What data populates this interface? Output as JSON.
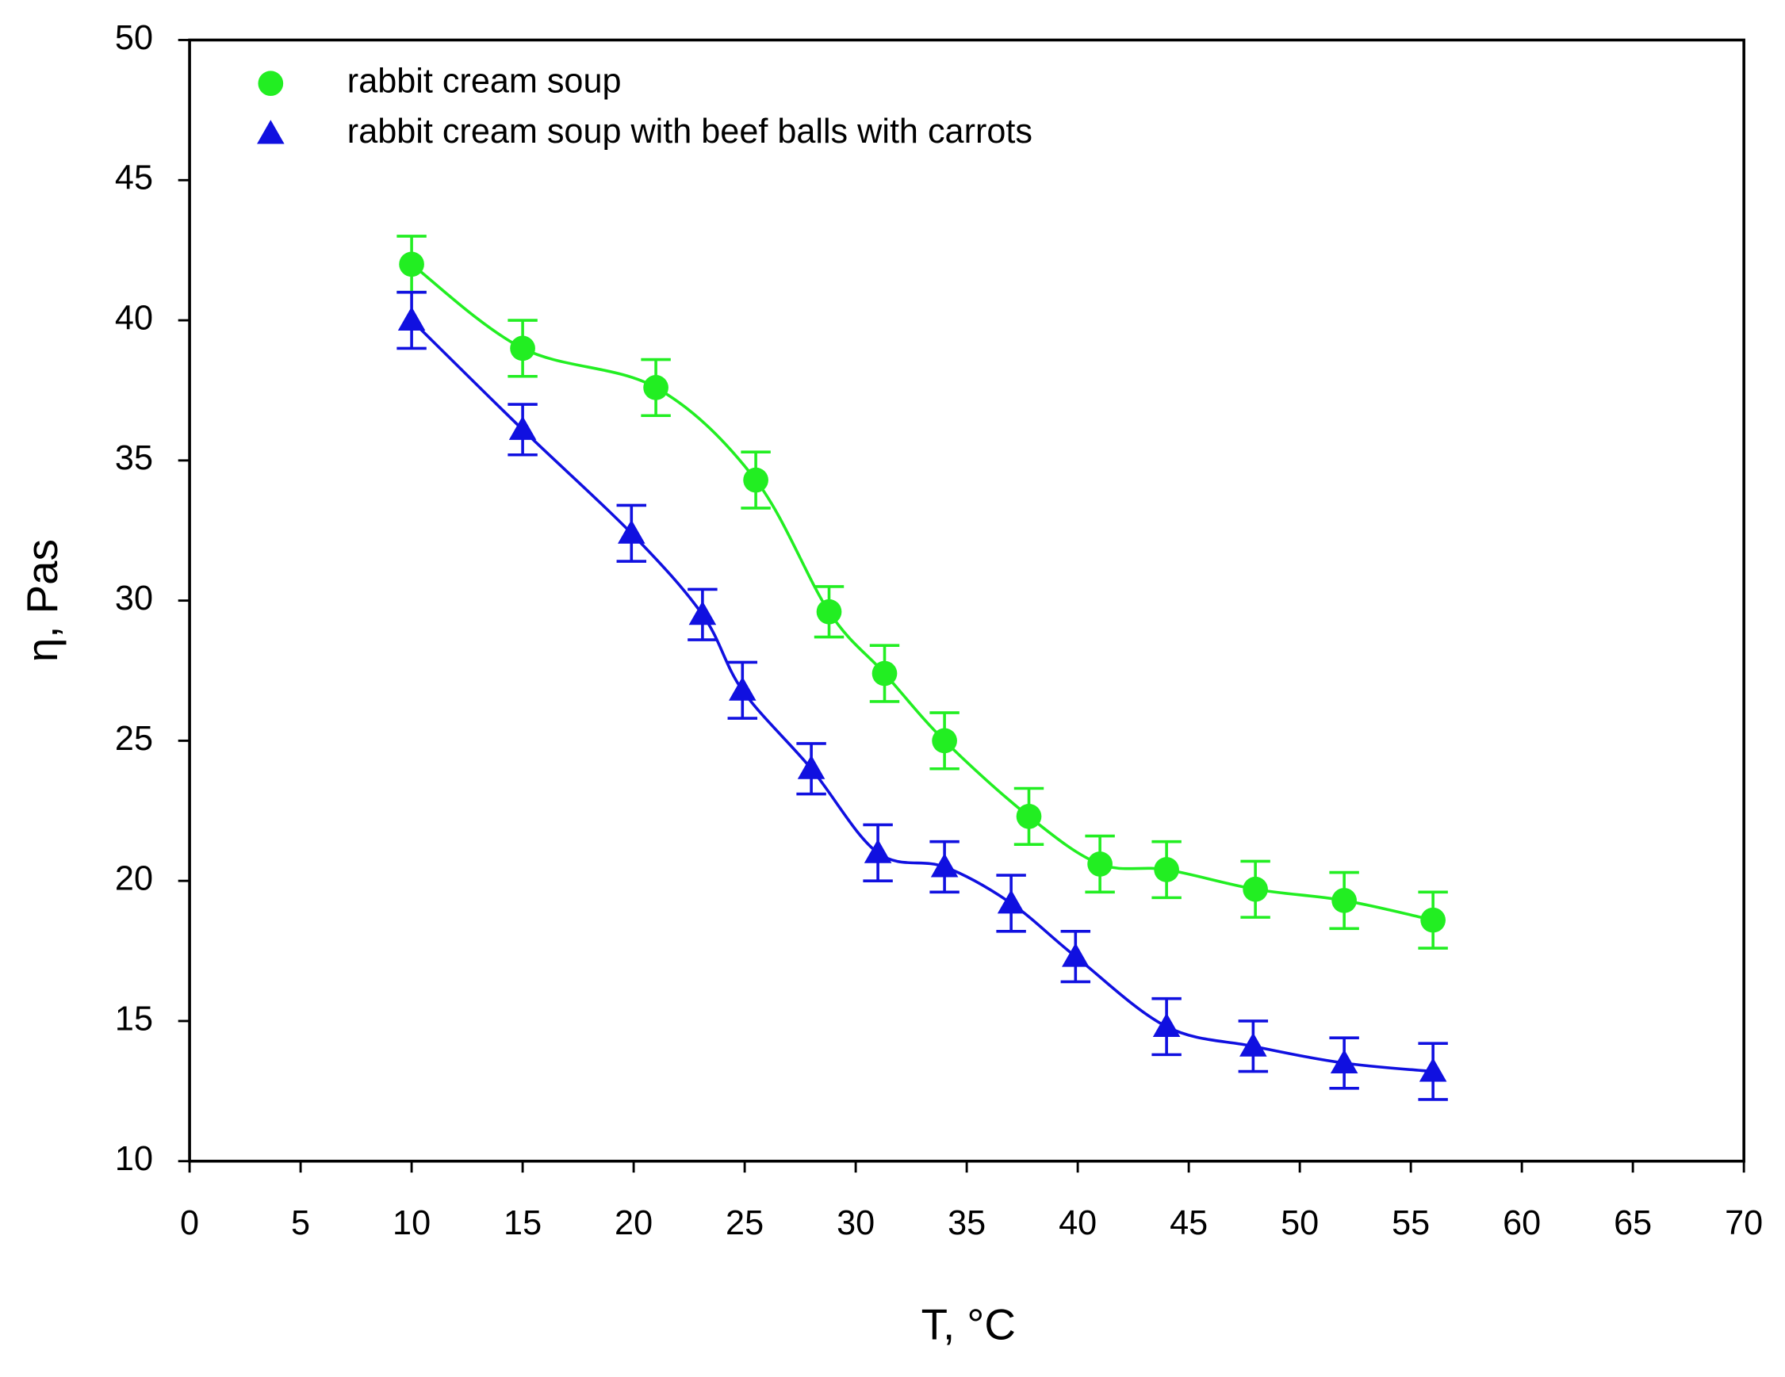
{
  "chart_data": {
    "type": "scatter",
    "xlabel": "T, °C",
    "ylabel": "η, Pas",
    "xlim": [
      0,
      70
    ],
    "xticks": [
      0,
      5,
      10,
      15,
      20,
      25,
      30,
      35,
      40,
      45,
      50,
      55,
      60,
      65,
      70
    ],
    "ylim": [
      10,
      50
    ],
    "yticks": [
      10,
      15,
      20,
      25,
      30,
      35,
      40,
      45,
      50
    ],
    "legend": "upper left",
    "fit_line": true,
    "series": [
      {
        "name": "rabbit cream soup",
        "color": "#22ee22",
        "marker": "circle",
        "x": [
          10,
          15,
          21,
          25.5,
          28.8,
          31.3,
          34,
          37.8,
          41,
          44,
          48,
          52,
          56
        ],
        "values": [
          42,
          39,
          37.6,
          34.3,
          29.6,
          27.4,
          25,
          22.3,
          20.6,
          20.4,
          19.7,
          19.3,
          18.6
        ],
        "errors": [
          1,
          1,
          1,
          1,
          0.9,
          1,
          1,
          1,
          1,
          1,
          1,
          1,
          1
        ]
      },
      {
        "name": "rabbit cream soup with beef balls with carrots",
        "color": "#1010e0",
        "marker": "triangle",
        "x": [
          10,
          15,
          19.9,
          23.1,
          24.9,
          28,
          31,
          34,
          37,
          39.9,
          44,
          47.9,
          52,
          56
        ],
        "values": [
          40,
          36.1,
          32.4,
          29.5,
          26.8,
          24,
          21,
          20.5,
          19.2,
          17.3,
          14.8,
          14.1,
          13.5,
          13.2
        ],
        "errors": [
          1,
          0.9,
          1,
          0.9,
          1,
          0.9,
          1,
          0.9,
          1,
          0.9,
          1,
          0.9,
          0.9,
          1
        ]
      }
    ]
  }
}
